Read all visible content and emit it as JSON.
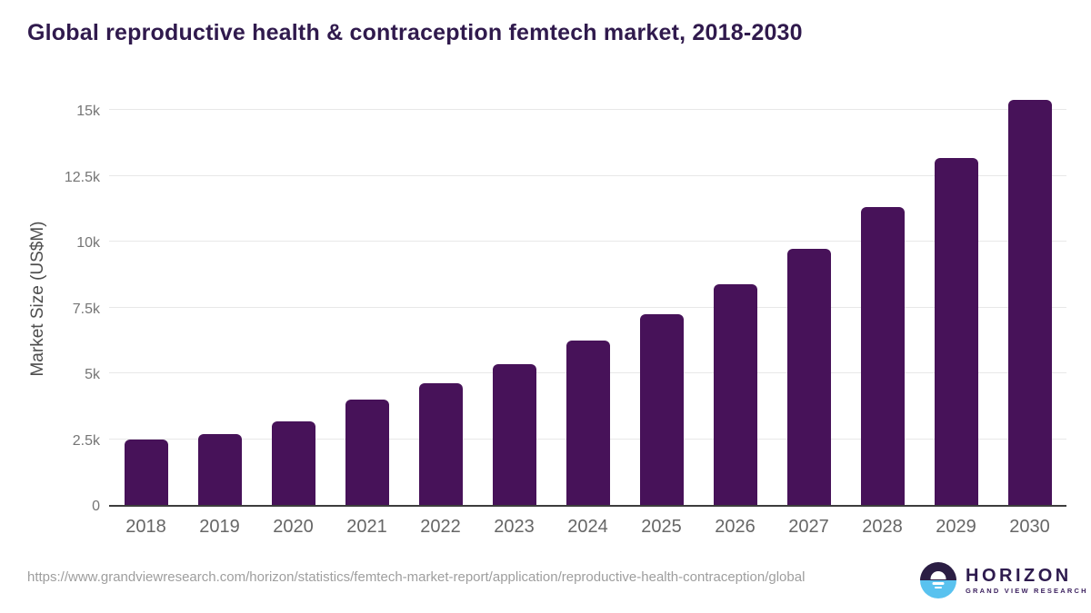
{
  "title": "Global reproductive health & contraception femtech market, 2018-2030",
  "chart_data": {
    "type": "bar",
    "title": "Global reproductive health & contraception femtech market, 2018-2030",
    "categories": [
      "2018",
      "2019",
      "2020",
      "2021",
      "2022",
      "2023",
      "2024",
      "2025",
      "2026",
      "2027",
      "2028",
      "2029",
      "2030"
    ],
    "values": [
      2470,
      2690,
      3160,
      4000,
      4620,
      5360,
      6230,
      7240,
      8380,
      9730,
      11330,
      13190,
      15400
    ],
    "xlabel": "",
    "ylabel": "Market Size (US$M)",
    "ylim": [
      0,
      15800
    ],
    "yticks": {
      "values": [
        0,
        2500,
        5000,
        7500,
        10000,
        12500,
        15000
      ],
      "labels": [
        "0",
        "2.5k",
        "5k",
        "7.5k",
        "10k",
        "12.5k",
        "15k"
      ]
    },
    "grid": true,
    "legend": "none",
    "bar_color": "#471259"
  },
  "colors": {
    "title": "#301a4d",
    "bar": "#471259",
    "gridline": "#e8e8e8",
    "axis_line": "#3d3d3d",
    "tick_label": "#757575",
    "x_label": "#666666",
    "url_text": "#9e9e9e",
    "logo_dark_purple": "#2b1e44",
    "logo_light_blue": "#59c2ef"
  },
  "footer": {
    "source_url": "https://www.grandviewresearch.com/horizon/statistics/femtech-market-report/application/reproductive-health-contraception/global",
    "logo": {
      "name": "HORIZON",
      "subtitle": "GRAND VIEW RESEARCH"
    }
  }
}
